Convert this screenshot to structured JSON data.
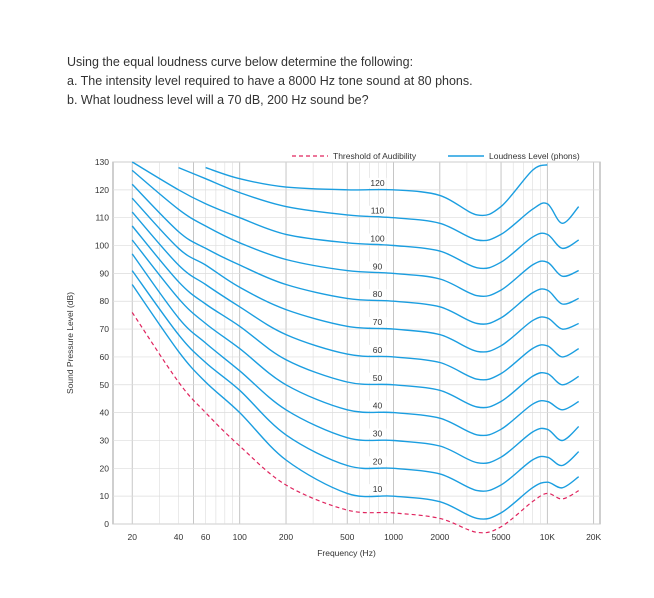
{
  "question": {
    "intro": "Using the equal loudness curve below determine the following:",
    "part_a": "a. The intensity level required to have a 8000 Hz tone sound at 80 phons.",
    "part_b": "b. What loudness level will a 70 dB, 200 Hz sound be?"
  },
  "colors": {
    "curve": "#1b9ee0",
    "threshold": "#e0245e",
    "grid_major": "#b8b8b8",
    "grid_minor": "#dcdcdc"
  },
  "chart_data": {
    "type": "line",
    "title": "",
    "xlabel": "Frequency (Hz)",
    "ylabel": "Sound Pressure Level (dB)",
    "x_scale": "log",
    "xlim": [
      15,
      22000
    ],
    "ylim": [
      0,
      130
    ],
    "x_ticks": [
      {
        "value": 20,
        "label": "20"
      },
      {
        "value": 40,
        "label": "40"
      },
      {
        "value": 60,
        "label": "60"
      },
      {
        "value": 100,
        "label": "100"
      },
      {
        "value": 200,
        "label": "200"
      },
      {
        "value": 500,
        "label": "500"
      },
      {
        "value": 1000,
        "label": "1000"
      },
      {
        "value": 2000,
        "label": "2000"
      },
      {
        "value": 5000,
        "label": "5000"
      },
      {
        "value": 10000,
        "label": "10K"
      },
      {
        "value": 20000,
        "label": "20K"
      }
    ],
    "y_ticks": [
      0,
      10,
      20,
      30,
      40,
      50,
      60,
      70,
      80,
      90,
      100,
      110,
      120,
      130
    ],
    "grid": true,
    "legend": {
      "position": "top",
      "entries": [
        {
          "label": "Threshold of Audibility",
          "style": "dashed",
          "color": "#e0245e"
        },
        {
          "label": "Loudness Level (phons)",
          "style": "solid",
          "color": "#1b9ee0"
        }
      ]
    },
    "x": [
      20,
      40,
      60,
      100,
      200,
      500,
      1000,
      2000,
      3500,
      5000,
      8000,
      10000,
      12500,
      16000
    ],
    "series": [
      {
        "label": "120",
        "values": [
          null,
          null,
          128,
          124,
          121,
          120,
          120,
          118,
          111,
          114,
          127,
          129,
          null,
          null
        ]
      },
      {
        "label": "110",
        "values": [
          null,
          128,
          124,
          119,
          114,
          111,
          110,
          108,
          102,
          104,
          113,
          115,
          108,
          114
        ]
      },
      {
        "label": "100",
        "values": [
          130,
          120,
          115,
          110,
          104,
          101,
          100,
          98,
          92,
          94,
          103,
          104,
          99,
          102
        ]
      },
      {
        "label": "90",
        "values": [
          127,
          113,
          107,
          101,
          95,
          91,
          90,
          88,
          82,
          84,
          93,
          94,
          89,
          91
        ]
      },
      {
        "label": "80",
        "values": [
          122,
          105,
          99,
          93,
          86,
          81,
          80,
          78,
          72,
          74,
          83,
          84,
          79,
          81
        ]
      },
      {
        "label": "70",
        "values": [
          117,
          99,
          93,
          85,
          77,
          71,
          70,
          68,
          62,
          64,
          73,
          74,
          70,
          72
        ]
      },
      {
        "label": "60",
        "values": [
          112,
          93,
          86,
          78,
          68,
          61,
          60,
          58,
          52,
          54,
          63,
          64,
          60,
          63
        ]
      },
      {
        "label": "50",
        "values": [
          107,
          87,
          79,
          71,
          59,
          51,
          50,
          48,
          42,
          44,
          53,
          54,
          50,
          53
        ]
      },
      {
        "label": "40",
        "values": [
          102,
          81,
          72,
          63,
          50,
          41,
          40,
          38,
          32,
          34,
          43,
          44,
          41,
          44
        ]
      },
      {
        "label": "30",
        "values": [
          97,
          74,
          65,
          55,
          41,
          31,
          30,
          28,
          22,
          24,
          33,
          34,
          30,
          35
        ]
      },
      {
        "label": "20",
        "values": [
          91,
          68,
          58,
          48,
          32,
          21,
          20,
          18,
          12,
          14,
          23,
          24,
          21,
          26
        ]
      },
      {
        "label": "10",
        "values": [
          86,
          62,
          51,
          40,
          23,
          11,
          10,
          8,
          2,
          4,
          13,
          15,
          13,
          17
        ]
      },
      {
        "label": "Threshold of Audibility",
        "values": [
          76,
          51,
          40,
          28,
          14,
          5,
          4,
          2,
          -3,
          -1,
          8,
          11,
          9,
          12
        ]
      }
    ]
  }
}
